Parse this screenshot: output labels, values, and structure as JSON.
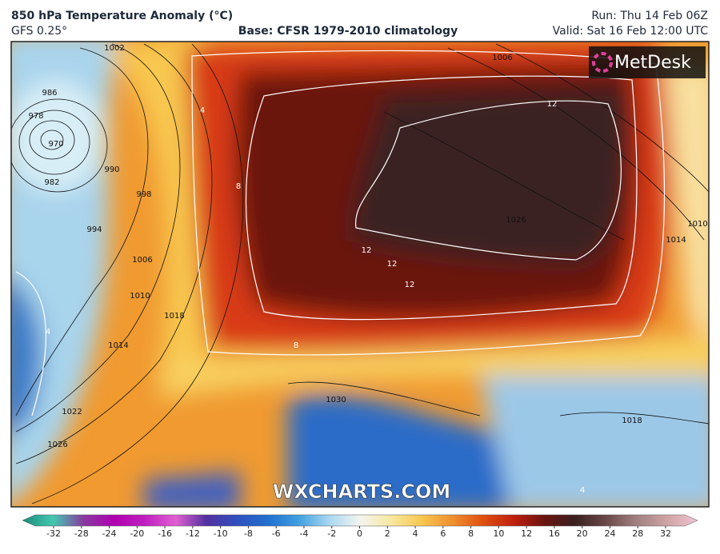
{
  "header": {
    "title": "850 hPa Temperature Anomaly (°C)",
    "model": "GFS 0.25°",
    "base": "Base: CFSR 1979-2010 climatology",
    "run": "Run: Thu 14 Feb 06Z",
    "valid": "Valid: Sat 16 Feb 12:00 UTC"
  },
  "logo": "MetDesk",
  "watermark": "WXCHARTS.COM",
  "isobar_labels": [
    "1002",
    "1006",
    "986",
    "978",
    "970",
    "982",
    "990",
    "998",
    "994",
    "1006",
    "1010",
    "1014",
    "1018",
    "1022",
    "1026",
    "1030",
    "1026",
    "1010",
    "1014",
    "1018"
  ],
  "isotherm_labels": [
    "12",
    "12",
    "12",
    "12",
    "8",
    "8",
    "4",
    "4",
    "4"
  ],
  "legend": {
    "ticks": [
      -32,
      -28,
      -24,
      -20,
      -16,
      -12,
      -10,
      -8,
      -6,
      -4,
      -2,
      0,
      2,
      4,
      6,
      8,
      10,
      12,
      16,
      20,
      24,
      28,
      32
    ],
    "colors": [
      "#1a8a7a",
      "#44c8b0",
      "#8a3aa0",
      "#b000b0",
      "#c020c0",
      "#e060d0",
      "#5030a0",
      "#3050c0",
      "#2070d0",
      "#40a0e0",
      "#a8d8f0",
      "#f4f4f0",
      "#f8e8a0",
      "#f8c850",
      "#f09030",
      "#e05010",
      "#c02010",
      "#6a1410",
      "#3a2020",
      "#6a4848",
      "#a08080",
      "#d0a4a4",
      "#f0c4d4"
    ]
  }
}
